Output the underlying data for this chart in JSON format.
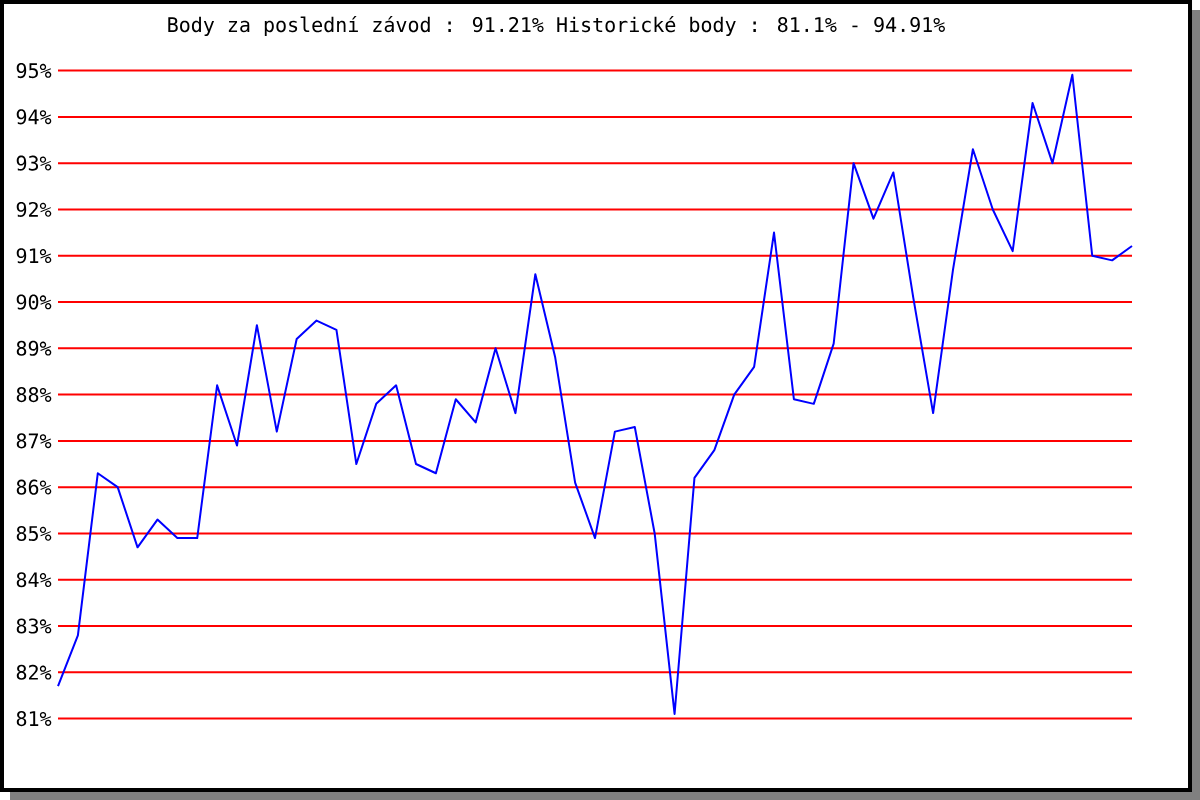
{
  "chart_data": {
    "type": "line",
    "title": "Body za poslední závod : 91.21%  Historické body : 81.1% - 94.91%",
    "categories": [
      null,
      null,
      null,
      null,
      null,
      null,
      null,
      null,
      null,
      null,
      null,
      null,
      null,
      null,
      null,
      null,
      null,
      null,
      null,
      null,
      null,
      null,
      null,
      null,
      null,
      null,
      null,
      null,
      null,
      null,
      null,
      null,
      null,
      null,
      null,
      null,
      null,
      null,
      null,
      null,
      null,
      null,
      null,
      null,
      null,
      null,
      null,
      null,
      null,
      null,
      null,
      null,
      null,
      null,
      null
    ],
    "values": [
      81.7,
      82.8,
      86.3,
      86.0,
      84.7,
      85.3,
      84.9,
      84.9,
      88.2,
      86.9,
      89.5,
      87.2,
      89.2,
      89.6,
      89.4,
      86.5,
      87.8,
      88.2,
      86.5,
      86.3,
      87.9,
      87.4,
      89.0,
      87.6,
      90.6,
      88.8,
      86.1,
      84.9,
      87.2,
      87.3,
      85.0,
      81.1,
      86.2,
      86.8,
      88.0,
      88.6,
      91.5,
      87.9,
      87.8,
      89.1,
      93.0,
      91.8,
      92.8,
      90.1,
      87.6,
      90.7,
      93.3,
      92.0,
      91.1,
      94.3,
      93.0,
      94.91,
      91.0,
      90.9,
      91.21
    ],
    "color": "#0000ff",
    "line_style": "solid",
    "grid": "y",
    "ylim": [
      81,
      95
    ],
    "yticks": [
      {
        "value": 81,
        "label": "81%"
      },
      {
        "value": 82,
        "label": "82%"
      },
      {
        "value": 83,
        "label": "83%"
      },
      {
        "value": 84,
        "label": "84%"
      },
      {
        "value": 85,
        "label": "85%"
      },
      {
        "value": 86,
        "label": "86%"
      },
      {
        "value": 87,
        "label": "87%"
      },
      {
        "value": 88,
        "label": "88%"
      },
      {
        "value": 89,
        "label": "89%"
      },
      {
        "value": 90,
        "label": "90%"
      },
      {
        "value": 91,
        "label": "91%"
      },
      {
        "value": 92,
        "label": "92%"
      },
      {
        "value": 93,
        "label": "93%"
      },
      {
        "value": 94,
        "label": "94%"
      },
      {
        "value": 95,
        "label": "95%"
      }
    ]
  }
}
